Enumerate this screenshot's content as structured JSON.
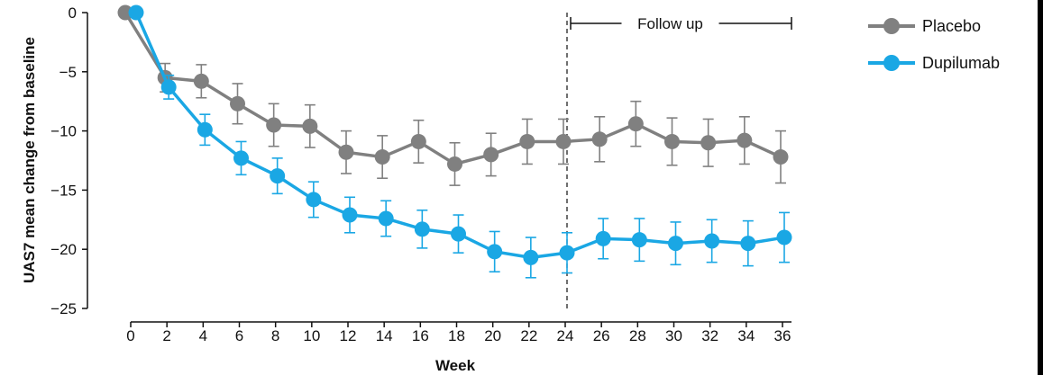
{
  "chart_data": {
    "type": "line",
    "title": "",
    "xlabel": "Week",
    "ylabel": "UAS7 mean change from baseline",
    "x": [
      0,
      2,
      4,
      6,
      8,
      10,
      12,
      14,
      16,
      18,
      20,
      22,
      24,
      26,
      28,
      30,
      32,
      34,
      36
    ],
    "xticks": [
      "0",
      "2",
      "4",
      "6",
      "8",
      "10",
      "12",
      "14",
      "16",
      "18",
      "20",
      "22",
      "24",
      "26",
      "28",
      "30",
      "32",
      "34",
      "36"
    ],
    "ylim": [
      -25,
      0
    ],
    "yticks": [
      "0",
      "−5",
      "−10",
      "−15",
      "−20",
      "−25"
    ],
    "series": [
      {
        "name": "Placebo",
        "color": "#808080",
        "values": [
          0,
          -5.5,
          -5.8,
          -7.7,
          -9.5,
          -9.6,
          -11.8,
          -12.2,
          -10.9,
          -12.8,
          -12.0,
          -10.9,
          -10.9,
          -10.7,
          -9.4,
          -10.9,
          -11.0,
          -10.8,
          -12.2
        ],
        "error": [
          0,
          1.2,
          1.4,
          1.7,
          1.8,
          1.8,
          1.8,
          1.8,
          1.8,
          1.8,
          1.8,
          1.9,
          1.9,
          1.9,
          1.9,
          2.0,
          2.0,
          2.0,
          2.2
        ]
      },
      {
        "name": "Dupilumab",
        "color": "#1aa7e4",
        "values": [
          0,
          -6.3,
          -9.9,
          -12.3,
          -13.8,
          -15.8,
          -17.1,
          -17.4,
          -18.3,
          -18.7,
          -20.2,
          -20.7,
          -20.3,
          -19.1,
          -19.2,
          -19.5,
          -19.3,
          -19.5,
          -19.0
        ],
        "error": [
          0,
          1.0,
          1.3,
          1.4,
          1.5,
          1.5,
          1.5,
          1.5,
          1.6,
          1.6,
          1.7,
          1.7,
          1.7,
          1.7,
          1.8,
          1.8,
          1.8,
          1.9,
          2.1
        ]
      }
    ],
    "annotations": [
      {
        "type": "vline",
        "x": 24,
        "style": "dashed"
      },
      {
        "type": "bracket",
        "text": "Follow up",
        "x_start": 24,
        "x_end": 36
      }
    ],
    "legend": {
      "position": "top-right"
    },
    "grid": false
  }
}
